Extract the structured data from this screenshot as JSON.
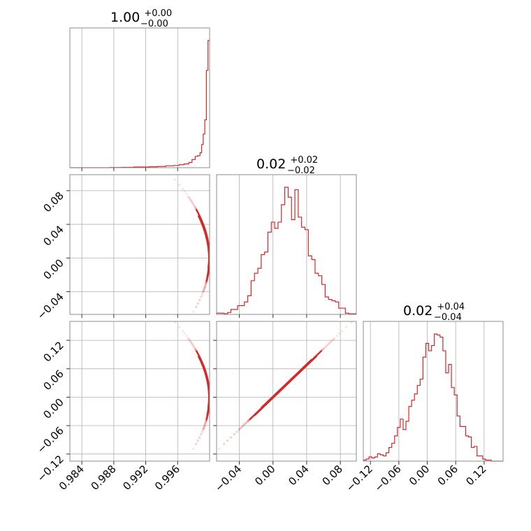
{
  "chart_data": {
    "type": "corner",
    "color": "#d62728",
    "parameters": [
      {
        "title_value": "1.00",
        "err_plus": "+0.00",
        "err_minus": "−0.00",
        "range": [
          0.9825,
          1.0
        ],
        "ticks": [
          0.984,
          0.988,
          0.992,
          0.996
        ],
        "tick_labels": [
          "0.984",
          "0.988",
          "0.992",
          "0.996"
        ]
      },
      {
        "title_value": "0.02",
        "err_plus": "+0.02",
        "err_minus": "−0.02",
        "range": [
          -0.067,
          0.099
        ],
        "ticks": [
          -0.04,
          0.0,
          0.04,
          0.08
        ],
        "tick_labels": [
          "−0.04",
          "0.00",
          "0.04",
          "0.08"
        ]
      },
      {
        "title_value": "0.02",
        "err_plus": "+0.04",
        "err_minus": "−0.04",
        "range": [
          -0.135,
          0.16
        ],
        "ticks": [
          -0.12,
          -0.06,
          0.0,
          0.06,
          0.12
        ],
        "tick_labels": [
          "−0.12",
          "−0.06",
          "0.00",
          "0.06",
          "0.12"
        ]
      }
    ],
    "histograms": [
      {
        "edges": [
          0.9825,
          0.9875,
          0.989,
          0.9905,
          0.9915,
          0.9925,
          0.9935,
          0.9945,
          0.9955,
          0.9962,
          0.9968,
          0.9974,
          0.9978,
          0.9982,
          0.9985,
          0.9988,
          0.999,
          0.9992,
          0.9994,
          0.9996,
          0.9998,
          1.0
        ],
        "counts": [
          0,
          0.3,
          0.5,
          1,
          1,
          1.3,
          1.6,
          2.5,
          3,
          4,
          5,
          7,
          11,
          15,
          16,
          20,
          31,
          45,
          64,
          130,
          170
        ]
      },
      {
        "edges": [
          -0.067,
          -0.062,
          -0.058,
          -0.054,
          -0.05,
          -0.046,
          -0.042,
          -0.038,
          -0.034,
          -0.03,
          -0.026,
          -0.022,
          -0.018,
          -0.014,
          -0.01,
          -0.006,
          -0.002,
          0.002,
          0.006,
          0.01,
          0.014,
          0.018,
          0.022,
          0.026,
          0.03,
          0.034,
          0.038,
          0.042,
          0.046,
          0.05,
          0.054,
          0.058,
          0.062,
          0.066,
          0.07,
          0.074,
          0.078,
          0.082,
          0.086,
          0.09,
          0.094,
          0.099
        ],
        "counts": [
          1,
          1,
          0.5,
          1.5,
          4,
          4,
          7,
          7,
          10,
          15,
          27,
          33,
          37,
          48,
          50,
          66,
          74,
          69,
          74,
          88,
          102,
          94,
          76,
          100,
          78,
          70,
          68,
          47,
          44,
          33,
          31,
          24,
          14,
          12,
          11,
          10,
          5,
          5,
          1,
          0.5,
          0.5
        ]
      },
      {
        "edges": [
          -0.135,
          -0.129,
          -0.123,
          -0.117,
          -0.111,
          -0.105,
          -0.099,
          -0.093,
          -0.087,
          -0.081,
          -0.075,
          -0.069,
          -0.063,
          -0.057,
          -0.051,
          -0.045,
          -0.039,
          -0.033,
          -0.027,
          -0.021,
          -0.015,
          -0.009,
          -0.003,
          0.003,
          0.009,
          0.015,
          0.021,
          0.027,
          0.033,
          0.039,
          0.045,
          0.051,
          0.057,
          0.063,
          0.069,
          0.075,
          0.081,
          0.087,
          0.093,
          0.099,
          0.105,
          0.111,
          0.117,
          0.123,
          0.129,
          0.135,
          0.16
        ],
        "counts": [
          1,
          2,
          4,
          3,
          4,
          7,
          6,
          5,
          8,
          13,
          17,
          24,
          32,
          40,
          30,
          38,
          52,
          58,
          64,
          72,
          78,
          99,
          112,
          105,
          110,
          121,
          120,
          118,
          105,
          84,
          92,
          70,
          63,
          43,
          33,
          33,
          24,
          23,
          13,
          14,
          5,
          5,
          2,
          1,
          1,
          0
        ]
      }
    ],
    "scatter_relations": {
      "y_vs_x": "x = sqrt(1 - y^2)",
      "z_vs_y": "z = 1.7 * y"
    },
    "samples_y": [
      0.093,
      0.087,
      0.082,
      0.079,
      0.076,
      0.073,
      0.072,
      0.071,
      0.07,
      0.069,
      0.068,
      0.067,
      0.066,
      0.065,
      0.064,
      0.063,
      0.062,
      0.061,
      0.06,
      0.059,
      0.058,
      0.057,
      0.056,
      0.055,
      0.054,
      0.053,
      0.052,
      0.051,
      0.05,
      0.049,
      0.048,
      0.047,
      0.046,
      0.045,
      0.044,
      0.043,
      0.042,
      0.041,
      0.04,
      0.039,
      0.038,
      0.037,
      0.036,
      0.035,
      0.034,
      0.033,
      0.032,
      0.031,
      0.03,
      0.029,
      0.028,
      0.027,
      0.026,
      0.025,
      0.024,
      0.023,
      0.022,
      0.021,
      0.02,
      0.019,
      0.018,
      0.017,
      0.016,
      0.015,
      0.014,
      0.013,
      0.012,
      0.011,
      0.01,
      0.009,
      0.008,
      0.007,
      0.006,
      0.005,
      0.004,
      0.003,
      0.002,
      0.001,
      0.0,
      -0.001,
      -0.002,
      -0.003,
      -0.004,
      -0.005,
      -0.006,
      -0.007,
      -0.008,
      -0.009,
      -0.01,
      -0.011,
      -0.012,
      -0.013,
      -0.014,
      -0.015,
      -0.016,
      -0.017,
      -0.018,
      -0.019,
      -0.02,
      -0.021,
      -0.022,
      -0.023,
      -0.024,
      -0.025,
      -0.026,
      -0.027,
      -0.028,
      -0.029,
      -0.03,
      -0.032,
      -0.034,
      -0.036,
      -0.038,
      -0.04,
      -0.043,
      -0.046,
      -0.05,
      -0.054,
      -0.058,
      -0.064
    ],
    "contour_y_levels": [
      [
        0.052,
        0.046,
        0.038,
        0.03,
        0.022,
        0.014,
        0.008,
        0.002,
        -0.004,
        -0.01,
        -0.016,
        -0.022
      ],
      [
        0.058,
        0.05,
        0.042,
        0.034,
        0.026,
        0.018,
        0.01,
        0.003,
        -0.004,
        -0.012,
        -0.02,
        -0.028
      ],
      [
        0.046,
        0.04,
        0.032,
        0.024,
        0.016,
        0.009,
        0.003,
        -0.003,
        -0.008,
        -0.014
      ]
    ]
  }
}
